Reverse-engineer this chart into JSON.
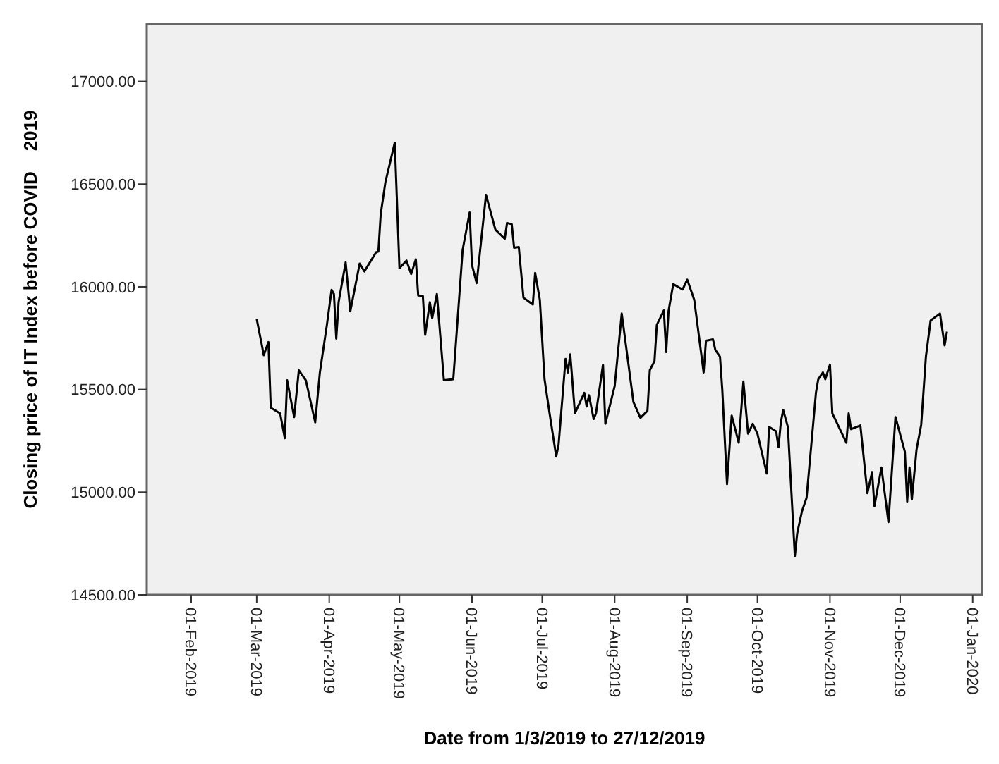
{
  "chart_data": {
    "type": "line",
    "xlabel": "Date from 1/3/2019 to 27/12/2019",
    "ylabel": "Closing price of IT Index before COVID    2019",
    "xlim": [
      "2019-01-13",
      "2020-01-05"
    ],
    "xticks": [
      {
        "value": "2019-02-01",
        "label": "01-Feb-2019"
      },
      {
        "value": "2019-03-01",
        "label": "01-Mar-2019"
      },
      {
        "value": "2019-04-01",
        "label": "01-Apr-2019"
      },
      {
        "value": "2019-05-01",
        "label": "01-May-2019"
      },
      {
        "value": "2019-06-01",
        "label": "01-Jun-2019"
      },
      {
        "value": "2019-07-01",
        "label": "01-Jul-2019"
      },
      {
        "value": "2019-08-01",
        "label": "01-Aug-2019"
      },
      {
        "value": "2019-09-01",
        "label": "01-Sep-2019"
      },
      {
        "value": "2019-10-01",
        "label": "01-Oct-2019"
      },
      {
        "value": "2019-11-01",
        "label": "01-Nov-2019"
      },
      {
        "value": "2019-12-01",
        "label": "01-Dec-2019"
      },
      {
        "value": "2020-01-01",
        "label": "01-Jan-2020"
      }
    ],
    "ylim": [
      14500,
      17280
    ],
    "yticks": [
      {
        "value": 14500,
        "label": "14500.00"
      },
      {
        "value": 15000,
        "label": "15000.00"
      },
      {
        "value": 15500,
        "label": "15500.00"
      },
      {
        "value": 16000,
        "label": "16000.00"
      },
      {
        "value": 16500,
        "label": "16500.00"
      },
      {
        "value": 17000,
        "label": "17000.00"
      }
    ],
    "grid": false,
    "marker": "none",
    "line_style": "solid",
    "series": [
      {
        "color": "#000000",
        "x": [
          "2019-03-01",
          "2019-03-03",
          "2019-03-04",
          "2019-03-06",
          "2019-03-07",
          "2019-03-11",
          "2019-03-13",
          "2019-03-14",
          "2019-03-17",
          "2019-03-19",
          "2019-03-22",
          "2019-03-26",
          "2019-03-28",
          "2019-03-31",
          "2019-04-02",
          "2019-04-03",
          "2019-04-04",
          "2019-04-05",
          "2019-04-08",
          "2019-04-10",
          "2019-04-14",
          "2019-04-16",
          "2019-04-21",
          "2019-04-22",
          "2019-04-23",
          "2019-04-25",
          "2019-04-29",
          "2019-05-01",
          "2019-05-04",
          "2019-05-06",
          "2019-05-08",
          "2019-05-09",
          "2019-05-11",
          "2019-05-12",
          "2019-05-14",
          "2019-05-15",
          "2019-05-17",
          "2019-05-20",
          "2019-05-24",
          "2019-05-28",
          "2019-05-31",
          "2019-06-01",
          "2019-06-03",
          "2019-06-07",
          "2019-06-11",
          "2019-06-15",
          "2019-06-16",
          "2019-06-18",
          "2019-06-19",
          "2019-06-21",
          "2019-06-23",
          "2019-06-27",
          "2019-06-28",
          "2019-06-30",
          "2019-07-02",
          "2019-07-04",
          "2019-07-07",
          "2019-07-08",
          "2019-07-11",
          "2019-07-12",
          "2019-07-13",
          "2019-07-15",
          "2019-07-19",
          "2019-07-20",
          "2019-07-21",
          "2019-07-23",
          "2019-07-24",
          "2019-07-27",
          "2019-07-28",
          "2019-08-01",
          "2019-08-04",
          "2019-08-09",
          "2019-08-12",
          "2019-08-15",
          "2019-08-16",
          "2019-08-18",
          "2019-08-19",
          "2019-08-22",
          "2019-08-23",
          "2019-08-24",
          "2019-08-26",
          "2019-08-30",
          "2019-09-01",
          "2019-09-04",
          "2019-09-08",
          "2019-09-09",
          "2019-09-12",
          "2019-09-13",
          "2019-09-15",
          "2019-09-16",
          "2019-09-18",
          "2019-09-20",
          "2019-09-23",
          "2019-09-25",
          "2019-09-27",
          "2019-09-29",
          "2019-10-01",
          "2019-10-05",
          "2019-10-06",
          "2019-10-09",
          "2019-10-10",
          "2019-10-11",
          "2019-10-12",
          "2019-10-14",
          "2019-10-17",
          "2019-10-18",
          "2019-10-20",
          "2019-10-22",
          "2019-10-26",
          "2019-10-27",
          "2019-10-29",
          "2019-10-30",
          "2019-11-01",
          "2019-11-02",
          "2019-11-08",
          "2019-11-09",
          "2019-11-10",
          "2019-11-14",
          "2019-11-17",
          "2019-11-19",
          "2019-11-20",
          "2019-11-23",
          "2019-11-26",
          "2019-11-29",
          "2019-12-03",
          "2019-12-04",
          "2019-12-05",
          "2019-12-06",
          "2019-12-08",
          "2019-12-10",
          "2019-12-12",
          "2019-12-14",
          "2019-12-18",
          "2019-12-20",
          "2019-12-21"
        ],
        "values": [
          15843,
          15727,
          15667,
          15731,
          15411,
          15384,
          15263,
          15545,
          15366,
          15594,
          15545,
          15340,
          15583,
          15815,
          15985,
          15965,
          15748,
          15925,
          16119,
          15881,
          16113,
          16075,
          16168,
          16172,
          16355,
          16510,
          16702,
          16091,
          16128,
          16062,
          16134,
          15958,
          15956,
          15766,
          15925,
          15848,
          15965,
          15545,
          15550,
          16179,
          16362,
          16106,
          16018,
          16448,
          16278,
          16234,
          16311,
          16305,
          16190,
          16194,
          15947,
          15914,
          16068,
          15936,
          15550,
          15396,
          15174,
          15230,
          15649,
          15583,
          15671,
          15384,
          15484,
          15417,
          15472,
          15356,
          15384,
          15621,
          15333,
          15517,
          15870,
          15439,
          15362,
          15396,
          15594,
          15638,
          15815,
          15885,
          15682,
          15881,
          16013,
          15987,
          16035,
          15936,
          15583,
          15737,
          15744,
          15693,
          15660,
          15495,
          15039,
          15373,
          15241,
          15539,
          15285,
          15333,
          15285,
          15091,
          15318,
          15296,
          15219,
          15340,
          15400,
          15318,
          14689,
          14800,
          14906,
          14973,
          15484,
          15550,
          15583,
          15550,
          15621,
          15384,
          15241,
          15384,
          15307,
          15325,
          14995,
          15098,
          14932,
          15120,
          14854,
          15366,
          15197,
          14954,
          15120,
          14965,
          15208,
          15329,
          15660,
          15836,
          15870,
          15715,
          15782
        ]
      }
    ]
  }
}
